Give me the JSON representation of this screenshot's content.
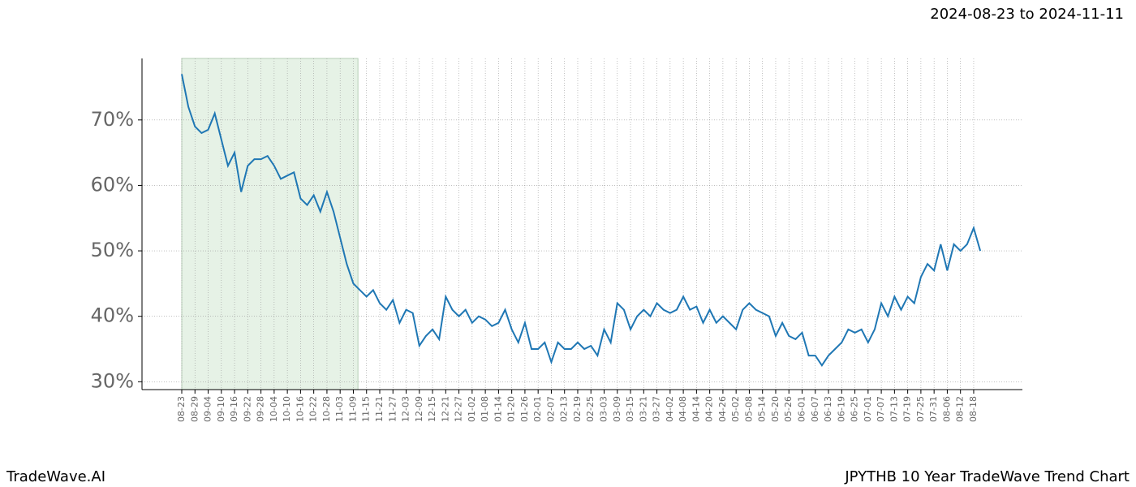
{
  "chart_data": {
    "type": "line",
    "title": "2024-08-23 to 2024-11-11",
    "footer_left": "TradeWave.AI",
    "footer_right": "JPYTHB 10 Year TradeWave Trend Chart",
    "categories": [
      "08-23",
      null,
      "08-29",
      null,
      "09-04",
      null,
      "09-10",
      null,
      "09-16",
      null,
      "09-22",
      null,
      "09-28",
      null,
      "10-04",
      null,
      "10-10",
      null,
      "10-16",
      null,
      "10-22",
      null,
      "10-28",
      null,
      "11-03",
      null,
      "11-09",
      null,
      "11-15",
      null,
      "11-21",
      null,
      "11-27",
      null,
      "12-03",
      null,
      "12-09",
      null,
      "12-15",
      null,
      "12-21",
      null,
      "12-27",
      null,
      "01-02",
      null,
      "01-08",
      null,
      "01-14",
      null,
      "01-20",
      null,
      "01-26",
      null,
      "02-01",
      null,
      "02-07",
      null,
      "02-13",
      null,
      "02-19",
      null,
      "02-25",
      null,
      "03-03",
      null,
      "03-09",
      null,
      "03-15",
      null,
      "03-21",
      null,
      "03-27",
      null,
      "04-02",
      null,
      "04-08",
      null,
      "04-14",
      null,
      "04-20",
      null,
      "04-26",
      null,
      "05-02",
      null,
      "05-08",
      null,
      "05-14",
      null,
      "05-20",
      null,
      "05-26",
      null,
      "06-01",
      null,
      "06-07",
      null,
      "06-13",
      null,
      "06-19",
      null,
      "06-25",
      null,
      "07-01",
      null,
      "07-07",
      null,
      "07-13",
      null,
      "07-19",
      null,
      "07-25",
      null,
      "07-31",
      null,
      "08-06",
      null,
      "08-12",
      null,
      "08-18",
      null
    ],
    "series": [
      {
        "color": "#1f77b4",
        "values": [
          77,
          72,
          69,
          68,
          68.5,
          71,
          67,
          63,
          65,
          59,
          63,
          64,
          64,
          64.5,
          63,
          61,
          61.5,
          62,
          58,
          57,
          58.5,
          56,
          59,
          56,
          52,
          48,
          45,
          44,
          43,
          44,
          42,
          41,
          42.5,
          39,
          41,
          40.5,
          35.5,
          37,
          38,
          36.5,
          43,
          41,
          40,
          41,
          39,
          40,
          39.5,
          38.5,
          39,
          41,
          38,
          36,
          39,
          35,
          35,
          36,
          33,
          36,
          35,
          35,
          36,
          35,
          35.5,
          34,
          38,
          36,
          42,
          41,
          38,
          40,
          41,
          40,
          42,
          41,
          40.5,
          41,
          43,
          41,
          41.5,
          39,
          41,
          39,
          40,
          39,
          38,
          41,
          42,
          41,
          40.5,
          40,
          37,
          39,
          37,
          36.5,
          37.5,
          34,
          34,
          32.5,
          34,
          35,
          36,
          38,
          37.5,
          38,
          36,
          38,
          42,
          40,
          43,
          41,
          43,
          42,
          46,
          48,
          47,
          51,
          47,
          51,
          50,
          51,
          53.5,
          50
        ]
      }
    ],
    "ylim": [
      28.8,
      79.4
    ],
    "yticks": [
      {
        "value": 30,
        "label": "30%"
      },
      {
        "value": 40,
        "label": "40%"
      },
      {
        "value": 50,
        "label": "50%"
      },
      {
        "value": 60,
        "label": "60%"
      },
      {
        "value": 70,
        "label": "70%"
      }
    ],
    "grid": true
  }
}
